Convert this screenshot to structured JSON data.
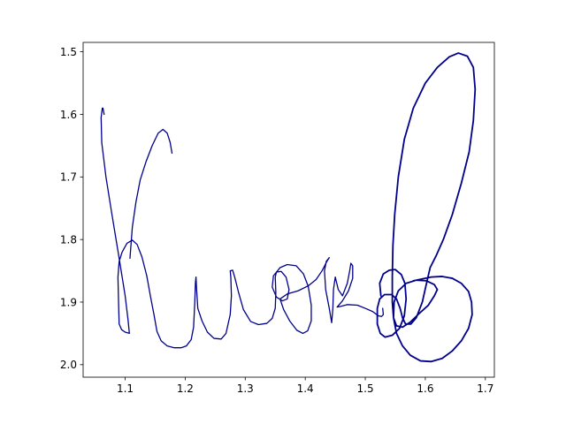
{
  "chart_data": {
    "type": "line",
    "title": "",
    "xlabel": "",
    "ylabel": "",
    "xlim": [
      1.03,
      1.715
    ],
    "ylim": [
      2.02,
      1.485
    ],
    "y_inverted": true,
    "grid": false,
    "xticks": [
      "1.1",
      "1.2",
      "1.3",
      "1.4",
      "1.5",
      "1.6",
      "1.7"
    ],
    "yticks": [
      "1.5",
      "1.6",
      "1.7",
      "1.8",
      "1.9",
      "2.0"
    ],
    "line_color": "#00008b",
    "series": [
      {
        "stroke_width": 1.3,
        "points": [
          [
            1.065,
            1.6
          ],
          [
            1.063,
            1.59
          ],
          [
            1.062,
            1.59
          ],
          [
            1.06,
            1.605
          ],
          [
            1.061,
            1.645
          ],
          [
            1.068,
            1.7
          ],
          [
            1.078,
            1.76
          ],
          [
            1.09,
            1.83
          ],
          [
            1.1,
            1.89
          ],
          [
            1.105,
            1.93
          ],
          [
            1.107,
            1.95
          ],
          [
            1.1,
            1.948
          ],
          [
            1.094,
            1.944
          ],
          [
            1.09,
            1.935
          ],
          [
            1.089,
            1.9
          ],
          [
            1.088,
            1.86
          ],
          [
            1.09,
            1.835
          ],
          [
            1.095,
            1.82
          ],
          [
            1.103,
            1.806
          ],
          [
            1.112,
            1.801
          ],
          [
            1.12,
            1.808
          ],
          [
            1.128,
            1.828
          ],
          [
            1.136,
            1.858
          ],
          [
            1.142,
            1.89
          ],
          [
            1.148,
            1.92
          ],
          [
            1.153,
            1.947
          ],
          [
            1.16,
            1.962
          ],
          [
            1.17,
            1.97
          ],
          [
            1.182,
            1.973
          ],
          [
            1.193,
            1.973
          ],
          [
            1.202,
            1.97
          ],
          [
            1.21,
            1.96
          ],
          [
            1.214,
            1.94
          ],
          [
            1.216,
            1.9
          ],
          [
            1.217,
            1.87
          ],
          [
            1.218,
            1.86
          ],
          [
            1.219,
            1.88
          ],
          [
            1.221,
            1.91
          ],
          [
            1.228,
            1.93
          ],
          [
            1.237,
            1.948
          ],
          [
            1.248,
            1.958
          ],
          [
            1.26,
            1.959
          ],
          [
            1.268,
            1.95
          ],
          [
            1.275,
            1.92
          ],
          [
            1.277,
            1.89
          ],
          [
            1.276,
            1.86
          ],
          [
            1.275,
            1.85
          ],
          [
            1.279,
            1.849
          ],
          [
            1.283,
            1.862
          ],
          [
            1.289,
            1.885
          ],
          [
            1.297,
            1.912
          ],
          [
            1.309,
            1.931
          ],
          [
            1.322,
            1.936
          ],
          [
            1.336,
            1.934
          ],
          [
            1.345,
            1.926
          ],
          [
            1.35,
            1.91
          ],
          [
            1.351,
            1.885
          ],
          [
            1.35,
            1.86
          ],
          [
            1.352,
            1.852
          ],
          [
            1.36,
            1.851
          ],
          [
            1.368,
            1.86
          ],
          [
            1.373,
            1.88
          ],
          [
            1.37,
            1.895
          ],
          [
            1.362,
            1.898
          ],
          [
            1.352,
            1.892
          ],
          [
            1.345,
            1.876
          ],
          [
            1.347,
            1.858
          ],
          [
            1.358,
            1.845
          ],
          [
            1.37,
            1.84
          ],
          [
            1.385,
            1.842
          ],
          [
            1.397,
            1.855
          ],
          [
            1.405,
            1.875
          ],
          [
            1.41,
            1.905
          ],
          [
            1.41,
            1.93
          ],
          [
            1.404,
            1.946
          ],
          [
            1.396,
            1.95
          ],
          [
            1.386,
            1.945
          ],
          [
            1.374,
            1.93
          ],
          [
            1.364,
            1.912
          ],
          [
            1.358,
            1.895
          ],
          [
            1.37,
            1.887
          ],
          [
            1.388,
            1.882
          ],
          [
            1.405,
            1.874
          ],
          [
            1.418,
            1.864
          ],
          [
            1.428,
            1.85
          ],
          [
            1.436,
            1.835
          ],
          [
            1.44,
            1.829
          ],
          [
            1.435,
            1.835
          ],
          [
            1.432,
            1.85
          ],
          [
            1.434,
            1.88
          ],
          [
            1.44,
            1.91
          ],
          [
            1.444,
            1.933
          ],
          [
            1.446,
            1.91
          ],
          [
            1.447,
            1.88
          ],
          [
            1.45,
            1.86
          ],
          [
            1.455,
            1.88
          ],
          [
            1.462,
            1.89
          ],
          [
            1.47,
            1.87
          ],
          [
            1.474,
            1.85
          ],
          [
            1.476,
            1.838
          ],
          [
            1.479,
            1.842
          ],
          [
            1.479,
            1.862
          ],
          [
            1.472,
            1.882
          ],
          [
            1.462,
            1.898
          ],
          [
            1.453,
            1.908
          ],
          [
            1.458,
            1.907
          ],
          [
            1.47,
            1.904
          ],
          [
            1.487,
            1.905
          ],
          [
            1.5,
            1.91
          ],
          [
            1.512,
            1.915
          ],
          [
            1.522,
            1.922
          ],
          [
            1.527,
            1.923
          ],
          [
            1.53,
            1.92
          ],
          [
            1.529,
            1.91
          ]
        ]
      },
      {
        "stroke_width": 1.8,
        "points": [
          [
            1.526,
            1.89
          ],
          [
            1.524,
            1.87
          ],
          [
            1.53,
            1.855
          ],
          [
            1.54,
            1.849
          ],
          [
            1.55,
            1.848
          ],
          [
            1.56,
            1.856
          ],
          [
            1.566,
            1.87
          ],
          [
            1.568,
            1.895
          ],
          [
            1.565,
            1.922
          ],
          [
            1.557,
            1.942
          ],
          [
            1.545,
            1.953
          ],
          [
            1.533,
            1.956
          ],
          [
            1.525,
            1.95
          ],
          [
            1.52,
            1.935
          ],
          [
            1.52,
            1.91
          ],
          [
            1.524,
            1.895
          ],
          [
            1.532,
            1.888
          ],
          [
            1.544,
            1.888
          ],
          [
            1.552,
            1.895
          ],
          [
            1.558,
            1.91
          ],
          [
            1.562,
            1.925
          ],
          [
            1.567,
            1.935
          ],
          [
            1.576,
            1.935
          ],
          [
            1.585,
            1.925
          ],
          [
            1.595,
            1.9
          ],
          [
            1.602,
            1.87
          ],
          [
            1.608,
            1.845
          ],
          [
            1.618,
            1.826
          ],
          [
            1.63,
            1.8
          ],
          [
            1.645,
            1.76
          ],
          [
            1.66,
            1.71
          ],
          [
            1.673,
            1.66
          ],
          [
            1.68,
            1.61
          ],
          [
            1.683,
            1.56
          ],
          [
            1.68,
            1.525
          ],
          [
            1.67,
            1.507
          ],
          [
            1.655,
            1.502
          ],
          [
            1.64,
            1.508
          ],
          [
            1.62,
            1.525
          ],
          [
            1.6,
            1.55
          ],
          [
            1.58,
            1.59
          ],
          [
            1.565,
            1.64
          ],
          [
            1.555,
            1.7
          ],
          [
            1.549,
            1.76
          ],
          [
            1.546,
            1.81
          ],
          [
            1.545,
            1.86
          ],
          [
            1.545,
            1.9
          ],
          [
            1.547,
            1.925
          ],
          [
            1.552,
            1.938
          ],
          [
            1.562,
            1.94
          ],
          [
            1.575,
            1.932
          ],
          [
            1.59,
            1.918
          ],
          [
            1.605,
            1.905
          ],
          [
            1.615,
            1.89
          ],
          [
            1.62,
            1.88
          ],
          [
            1.615,
            1.872
          ],
          [
            1.602,
            1.866
          ],
          [
            1.585,
            1.865
          ],
          [
            1.568,
            1.87
          ],
          [
            1.555,
            1.882
          ],
          [
            1.548,
            1.9
          ],
          [
            1.547,
            1.925
          ],
          [
            1.552,
            1.95
          ],
          [
            1.562,
            1.97
          ],
          [
            1.575,
            1.985
          ],
          [
            1.592,
            1.994
          ],
          [
            1.61,
            1.995
          ],
          [
            1.628,
            1.99
          ],
          [
            1.645,
            1.978
          ],
          [
            1.66,
            1.962
          ],
          [
            1.672,
            1.942
          ],
          [
            1.678,
            1.92
          ],
          [
            1.677,
            1.9
          ],
          [
            1.672,
            1.883
          ],
          [
            1.66,
            1.87
          ],
          [
            1.645,
            1.862
          ],
          [
            1.628,
            1.859
          ],
          [
            1.61,
            1.86
          ],
          [
            1.595,
            1.863
          ],
          [
            1.58,
            1.866
          ]
        ]
      },
      {
        "stroke_width": 1.3,
        "points": [
          [
            1.108,
            1.83
          ],
          [
            1.112,
            1.78
          ],
          [
            1.118,
            1.74
          ],
          [
            1.125,
            1.705
          ],
          [
            1.135,
            1.675
          ],
          [
            1.145,
            1.65
          ],
          [
            1.155,
            1.63
          ],
          [
            1.163,
            1.624
          ],
          [
            1.17,
            1.63
          ],
          [
            1.175,
            1.645
          ],
          [
            1.178,
            1.662
          ]
        ]
      }
    ]
  }
}
